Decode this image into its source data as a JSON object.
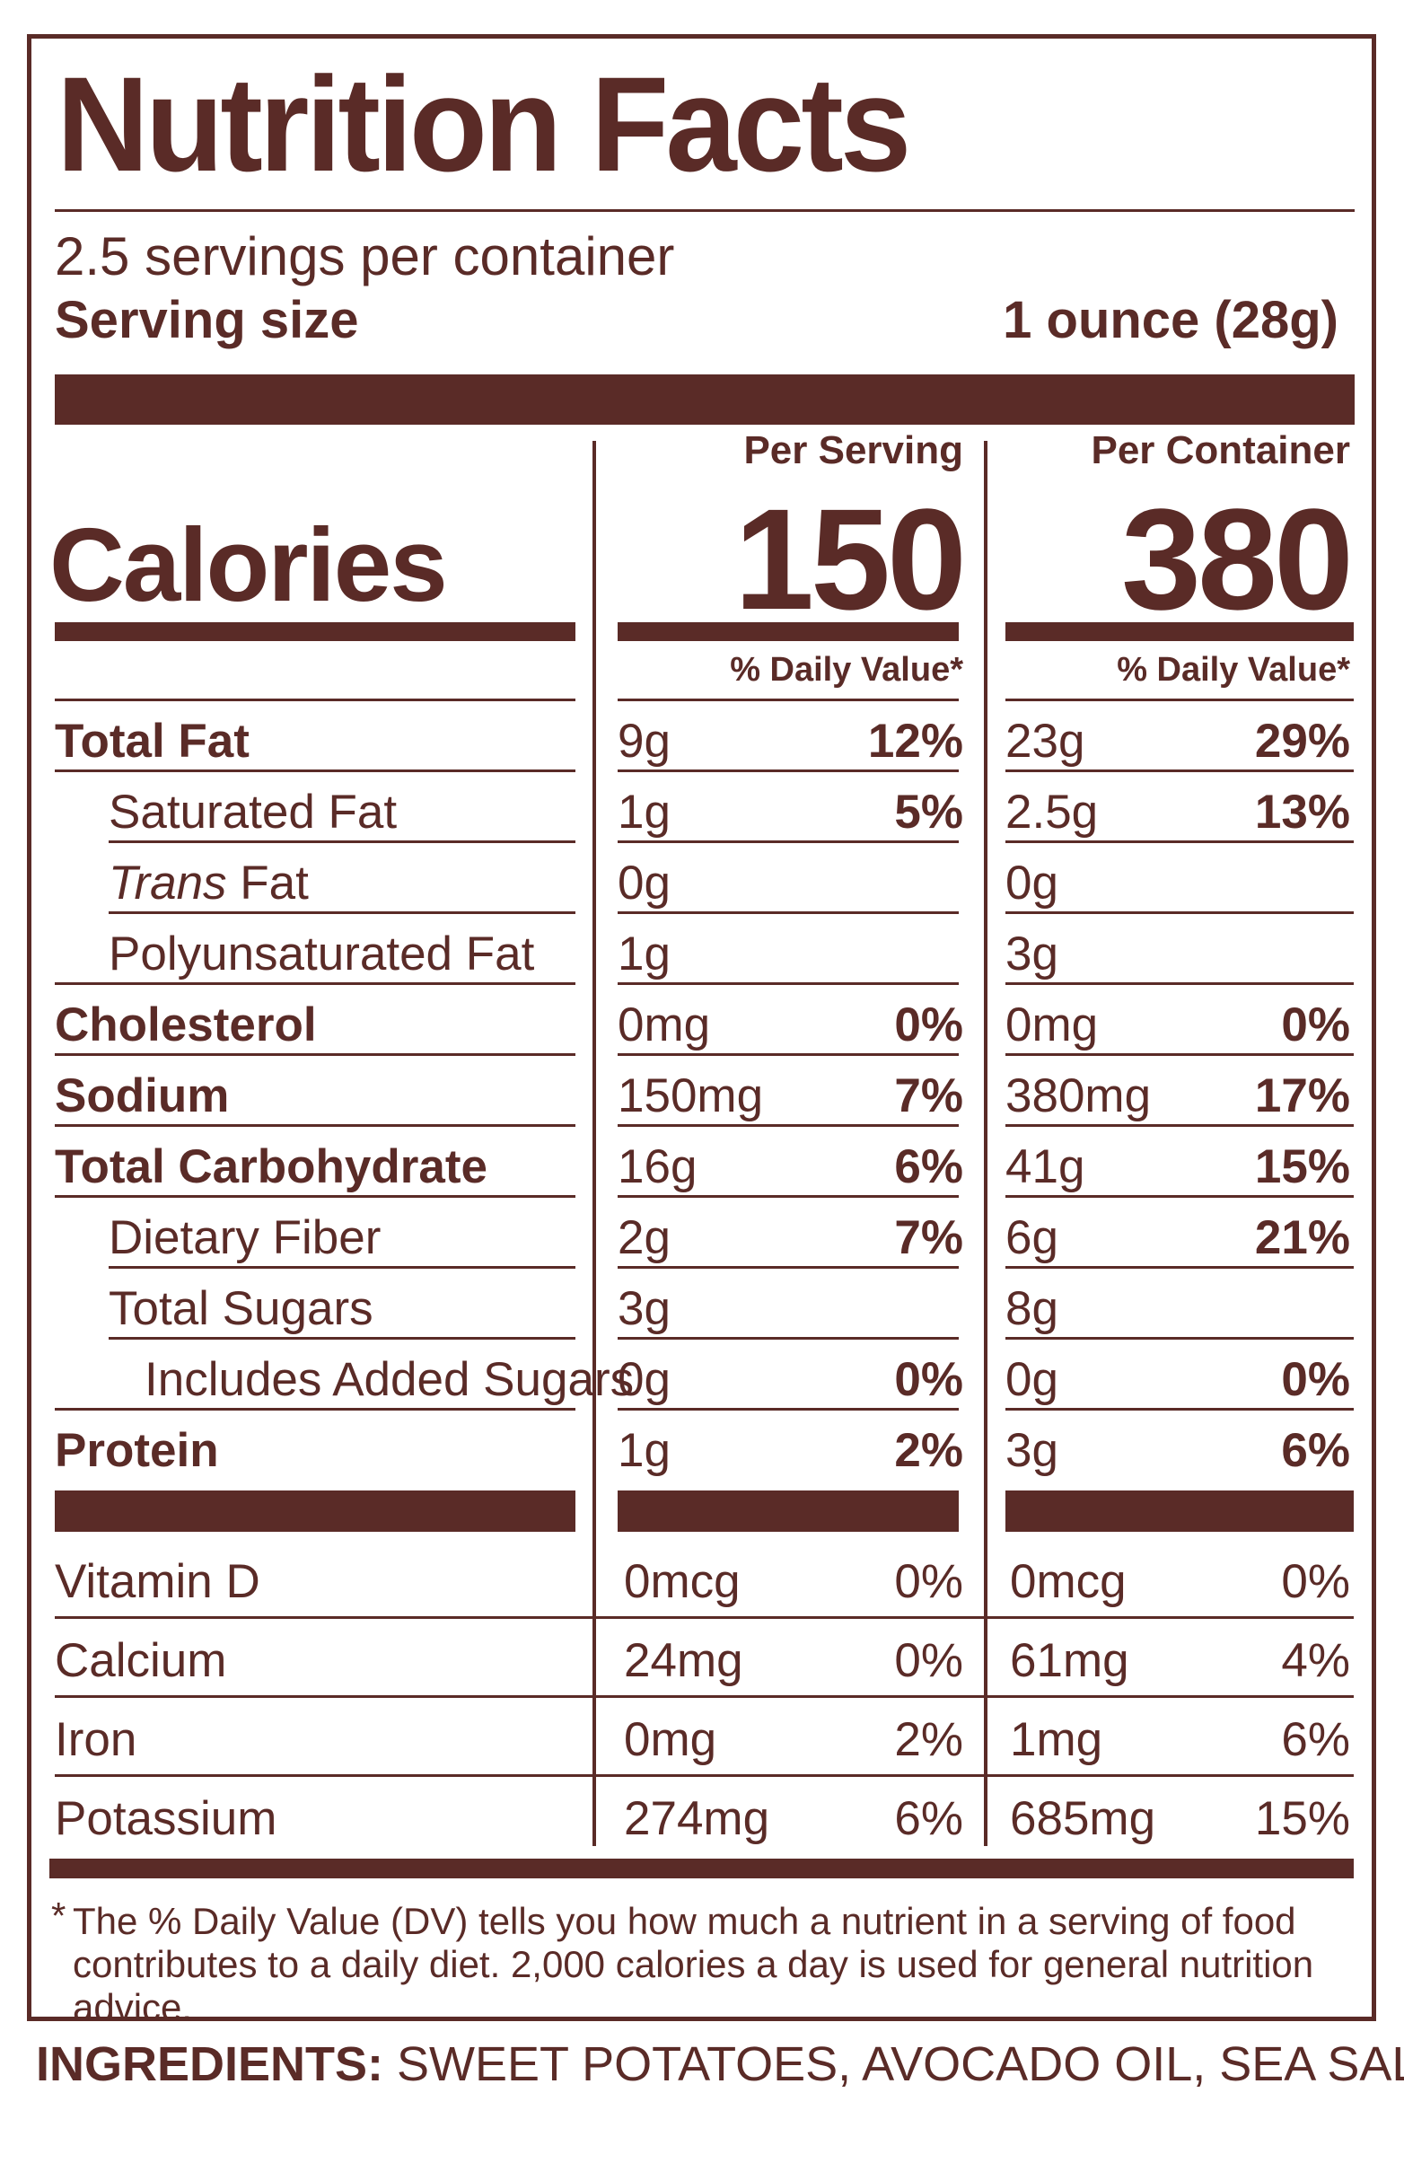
{
  "title": "Nutrition Facts",
  "servings_per_container": "2.5 servings per container",
  "serving_size_label": "Serving size",
  "serving_size_value": "1 ounce (28g)",
  "column_headers": {
    "per_serving": "Per Serving",
    "per_container": "Per Container"
  },
  "calories": {
    "label": "Calories",
    "per_serving": "150",
    "per_container": "380"
  },
  "daily_value_header": "% Daily Value*",
  "nutrients": [
    {
      "name": "Total Fat",
      "bold": true,
      "indent": 0,
      "serving_amount": "9g",
      "serving_dv": "12%",
      "container_amount": "23g",
      "container_dv": "29%"
    },
    {
      "name": "Saturated Fat",
      "bold": false,
      "indent": 1,
      "serving_amount": "1g",
      "serving_dv": "5%",
      "container_amount": "2.5g",
      "container_dv": "13%"
    },
    {
      "name_italic": "Trans",
      "name": " Fat",
      "bold": false,
      "indent": 1,
      "serving_amount": "0g",
      "serving_dv": "",
      "container_amount": "0g",
      "container_dv": ""
    },
    {
      "name": "Polyunsaturated Fat",
      "bold": false,
      "indent": 1,
      "serving_amount": "1g",
      "serving_dv": "",
      "container_amount": "3g",
      "container_dv": ""
    },
    {
      "name": "Cholesterol",
      "bold": true,
      "indent": 0,
      "serving_amount": "0mg",
      "serving_dv": "0%",
      "container_amount": "0mg",
      "container_dv": "0%"
    },
    {
      "name": "Sodium",
      "bold": true,
      "indent": 0,
      "serving_amount": "150mg",
      "serving_dv": "7%",
      "container_amount": "380mg",
      "container_dv": "17%"
    },
    {
      "name": "Total Carbohydrate",
      "bold": true,
      "indent": 0,
      "serving_amount": "16g",
      "serving_dv": "6%",
      "container_amount": "41g",
      "container_dv": "15%"
    },
    {
      "name": "Dietary Fiber",
      "bold": false,
      "indent": 1,
      "serving_amount": "2g",
      "serving_dv": "7%",
      "container_amount": "6g",
      "container_dv": "21%"
    },
    {
      "name": "Total Sugars",
      "bold": false,
      "indent": 1,
      "serving_amount": "3g",
      "serving_dv": "",
      "container_amount": "8g",
      "container_dv": ""
    },
    {
      "name": "Includes Added Sugars",
      "bold": false,
      "indent": 2,
      "serving_amount": "0g",
      "serving_dv": "0%",
      "container_amount": "0g",
      "container_dv": "0%"
    },
    {
      "name": "Protein",
      "bold": true,
      "indent": 0,
      "serving_amount": "1g",
      "serving_dv": "2%",
      "container_amount": "3g",
      "container_dv": "6%"
    }
  ],
  "vitamins": [
    {
      "name": "Vitamin D",
      "serving_amount": "0mcg",
      "serving_dv": "0%",
      "container_amount": "0mcg",
      "container_dv": "0%"
    },
    {
      "name": "Calcium",
      "serving_amount": "24mg",
      "serving_dv": "0%",
      "container_amount": "61mg",
      "container_dv": "4%"
    },
    {
      "name": "Iron",
      "serving_amount": "0mg",
      "serving_dv": "2%",
      "container_amount": "1mg",
      "container_dv": "6%"
    },
    {
      "name": "Potassium",
      "serving_amount": "274mg",
      "serving_dv": "6%",
      "container_amount": "685mg",
      "container_dv": "15%"
    }
  ],
  "footnote_star": "*",
  "footnote": "The % Daily Value (DV) tells you how much a nutrient in a serving of food contributes to a daily diet. 2,000 calories a day is used for general nutrition advice.",
  "ingredients_label": "INGREDIENTS:",
  "ingredients_value": " SWEET POTATOES, AVOCADO OIL, SEA SALT.",
  "colors": {
    "ink": "#5a2b27",
    "background": "#ffffff"
  }
}
